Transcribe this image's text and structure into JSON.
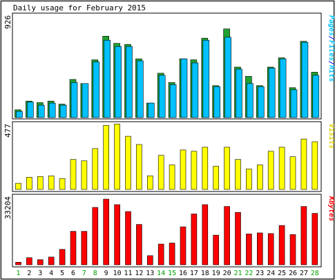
{
  "chart_data": [
    {
      "type": "bar",
      "title": "Daily usage for February 2015",
      "categories": [
        "1",
        "2",
        "3",
        "4",
        "5",
        "6",
        "7",
        "8",
        "9",
        "10",
        "11",
        "12",
        "13",
        "14",
        "15",
        "16",
        "17",
        "18",
        "19",
        "20",
        "21",
        "22",
        "23",
        "24",
        "25",
        "26",
        "27",
        "28"
      ],
      "weekend_days": [
        "1",
        "7",
        "8",
        "14",
        "15",
        "21",
        "22",
        "28"
      ],
      "panel": "top",
      "ymax_label": "926",
      "ylim": [
        0,
        926
      ],
      "legend": [
        {
          "text": "Pages",
          "color": "#00c0ff"
        },
        {
          "text": "/",
          "color": "#0000ff"
        },
        {
          "text": "Files",
          "color": "#00c0ff"
        },
        {
          "text": "/",
          "color": "#0000ff"
        },
        {
          "text": "Hits",
          "color": "#00c0ff"
        }
      ],
      "series": [
        {
          "name": "Hits",
          "color": "#20a030",
          "values": [
            75,
            160,
            145,
            160,
            130,
            370,
            330,
            560,
            790,
            720,
            710,
            570,
            140,
            430,
            340,
            570,
            560,
            770,
            310,
            860,
            490,
            400,
            310,
            490,
            580,
            290,
            740,
            440
          ]
        },
        {
          "name": "Files",
          "color": "#00c0ff",
          "values": [
            60,
            150,
            120,
            140,
            120,
            340,
            330,
            540,
            750,
            690,
            690,
            550,
            140,
            410,
            320,
            570,
            530,
            750,
            300,
            780,
            470,
            330,
            300,
            480,
            570,
            270,
            730,
            410
          ]
        }
      ]
    },
    {
      "type": "bar",
      "panel": "middle",
      "ymax_label": "477",
      "ylim": [
        0,
        477
      ],
      "legend": [
        {
          "text": "Visits",
          "color": "#e0d000"
        }
      ],
      "series": [
        {
          "name": "Visits",
          "color": "#ffff00",
          "values": [
            45,
            90,
            95,
            100,
            80,
            220,
            210,
            300,
            470,
            480,
            390,
            330,
            100,
            250,
            180,
            290,
            280,
            310,
            170,
            310,
            220,
            150,
            180,
            280,
            310,
            240,
            370,
            350
          ]
        }
      ]
    },
    {
      "type": "bar",
      "panel": "bottom",
      "ymax_label": "33204",
      "ylim": [
        0,
        33204
      ],
      "legend": [
        {
          "text": "KBytes",
          "color": "#ff0000"
        }
      ],
      "series": [
        {
          "name": "KBytes",
          "color": "#ff0000",
          "values": [
            1300,
            3600,
            2600,
            3900,
            7800,
            16900,
            16900,
            29000,
            33200,
            30400,
            26900,
            20400,
            4600,
            10500,
            11000,
            19200,
            25700,
            30400,
            15000,
            29500,
            26500,
            15600,
            16100,
            15800,
            19900,
            15300,
            29500,
            26000
          ]
        }
      ]
    }
  ]
}
